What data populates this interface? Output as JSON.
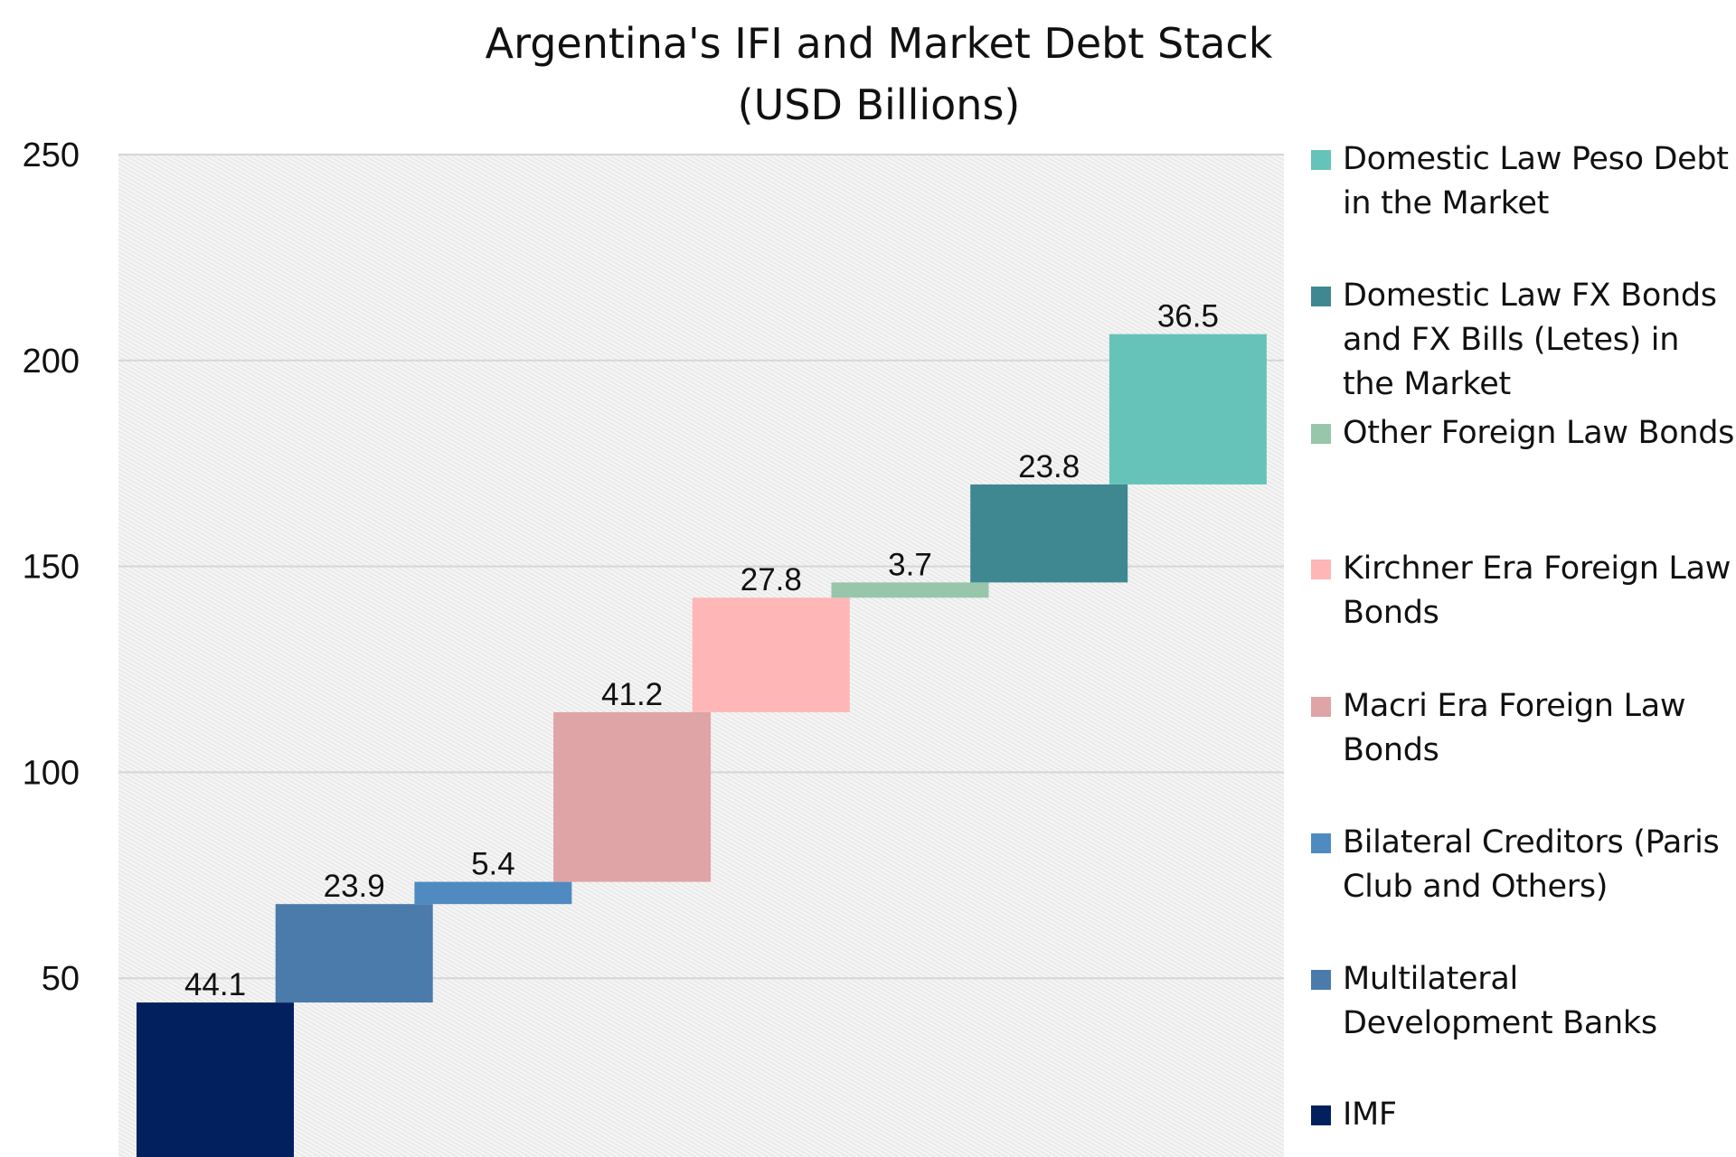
{
  "chart_data": {
    "type": "bar",
    "subtype": "waterfall",
    "title": "Argentina's IFI and Market Debt Stack",
    "subtitle": "(USD Billions)",
    "xlabel": "",
    "ylabel": "",
    "ylim": [
      0,
      250
    ],
    "yticks": [
      50,
      100,
      150,
      200,
      250
    ],
    "grid": true,
    "legend_position": "right",
    "categories": [
      "IMF",
      "Multilateral Development Banks",
      "Bilateral Creditors (Paris Club and Others)",
      "Macri Era Foreign Law Bonds",
      "Kirchner Era Foreign Law Bonds",
      "Other Foreign Law Bonds",
      "Domestic Law FX Bonds and FX Bills (Letes) in the Market",
      "Domestic Law Peso Debt in the Market"
    ],
    "values": [
      44.1,
      23.9,
      5.4,
      41.2,
      27.8,
      3.7,
      23.8,
      36.5
    ],
    "data_labels": [
      "44.1",
      "23.9",
      "5.4",
      "41.2",
      "27.8",
      "3.7",
      "23.8",
      "36.5"
    ],
    "colors": [
      "#03205e",
      "#4a7bab",
      "#4f8bc0",
      "#dfa4a5",
      "#feb6b7",
      "#97c6ab",
      "#3f8892",
      "#66c3b9"
    ],
    "legend": [
      {
        "name": "Domestic Law Peso Debt in the Market",
        "color": "#66c3b9"
      },
      {
        "name": "Domestic Law FX Bonds and FX Bills (Letes) in the Market",
        "color": "#3f8892"
      },
      {
        "name": "Other Foreign Law Bonds",
        "color": "#97c6ab"
      },
      {
        "name": "Kirchner Era Foreign Law Bonds",
        "color": "#feb6b7"
      },
      {
        "name": "Macri Era Foreign Law Bonds",
        "color": "#dfa4a5"
      },
      {
        "name": "Bilateral Creditors (Paris Club and Others)",
        "color": "#4f8bc0"
      },
      {
        "name": "Multilateral Development Banks",
        "color": "#4a7bab"
      },
      {
        "name": "IMF",
        "color": "#03205e"
      }
    ]
  }
}
